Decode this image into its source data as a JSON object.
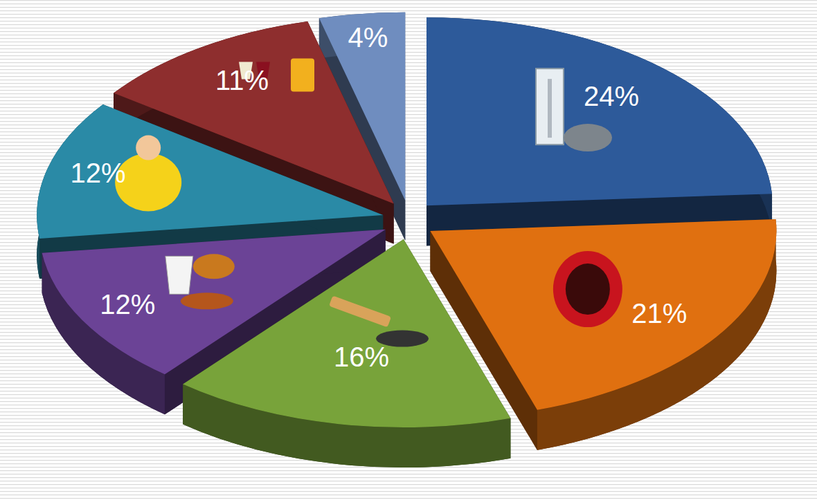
{
  "chart_data": {
    "type": "pie",
    "values": [
      24,
      21,
      16,
      12,
      12,
      11,
      4
    ],
    "value_labels": [
      "24%",
      "21%",
      "16%",
      "12%",
      "12%",
      "11%",
      "4%"
    ],
    "colors": [
      "#2d5a9a",
      "#e07010",
      "#78a33a",
      "#6b4396",
      "#2a8aa6",
      "#8e2e2e",
      "#6f8dbf"
    ],
    "data_labels": true
  }
}
